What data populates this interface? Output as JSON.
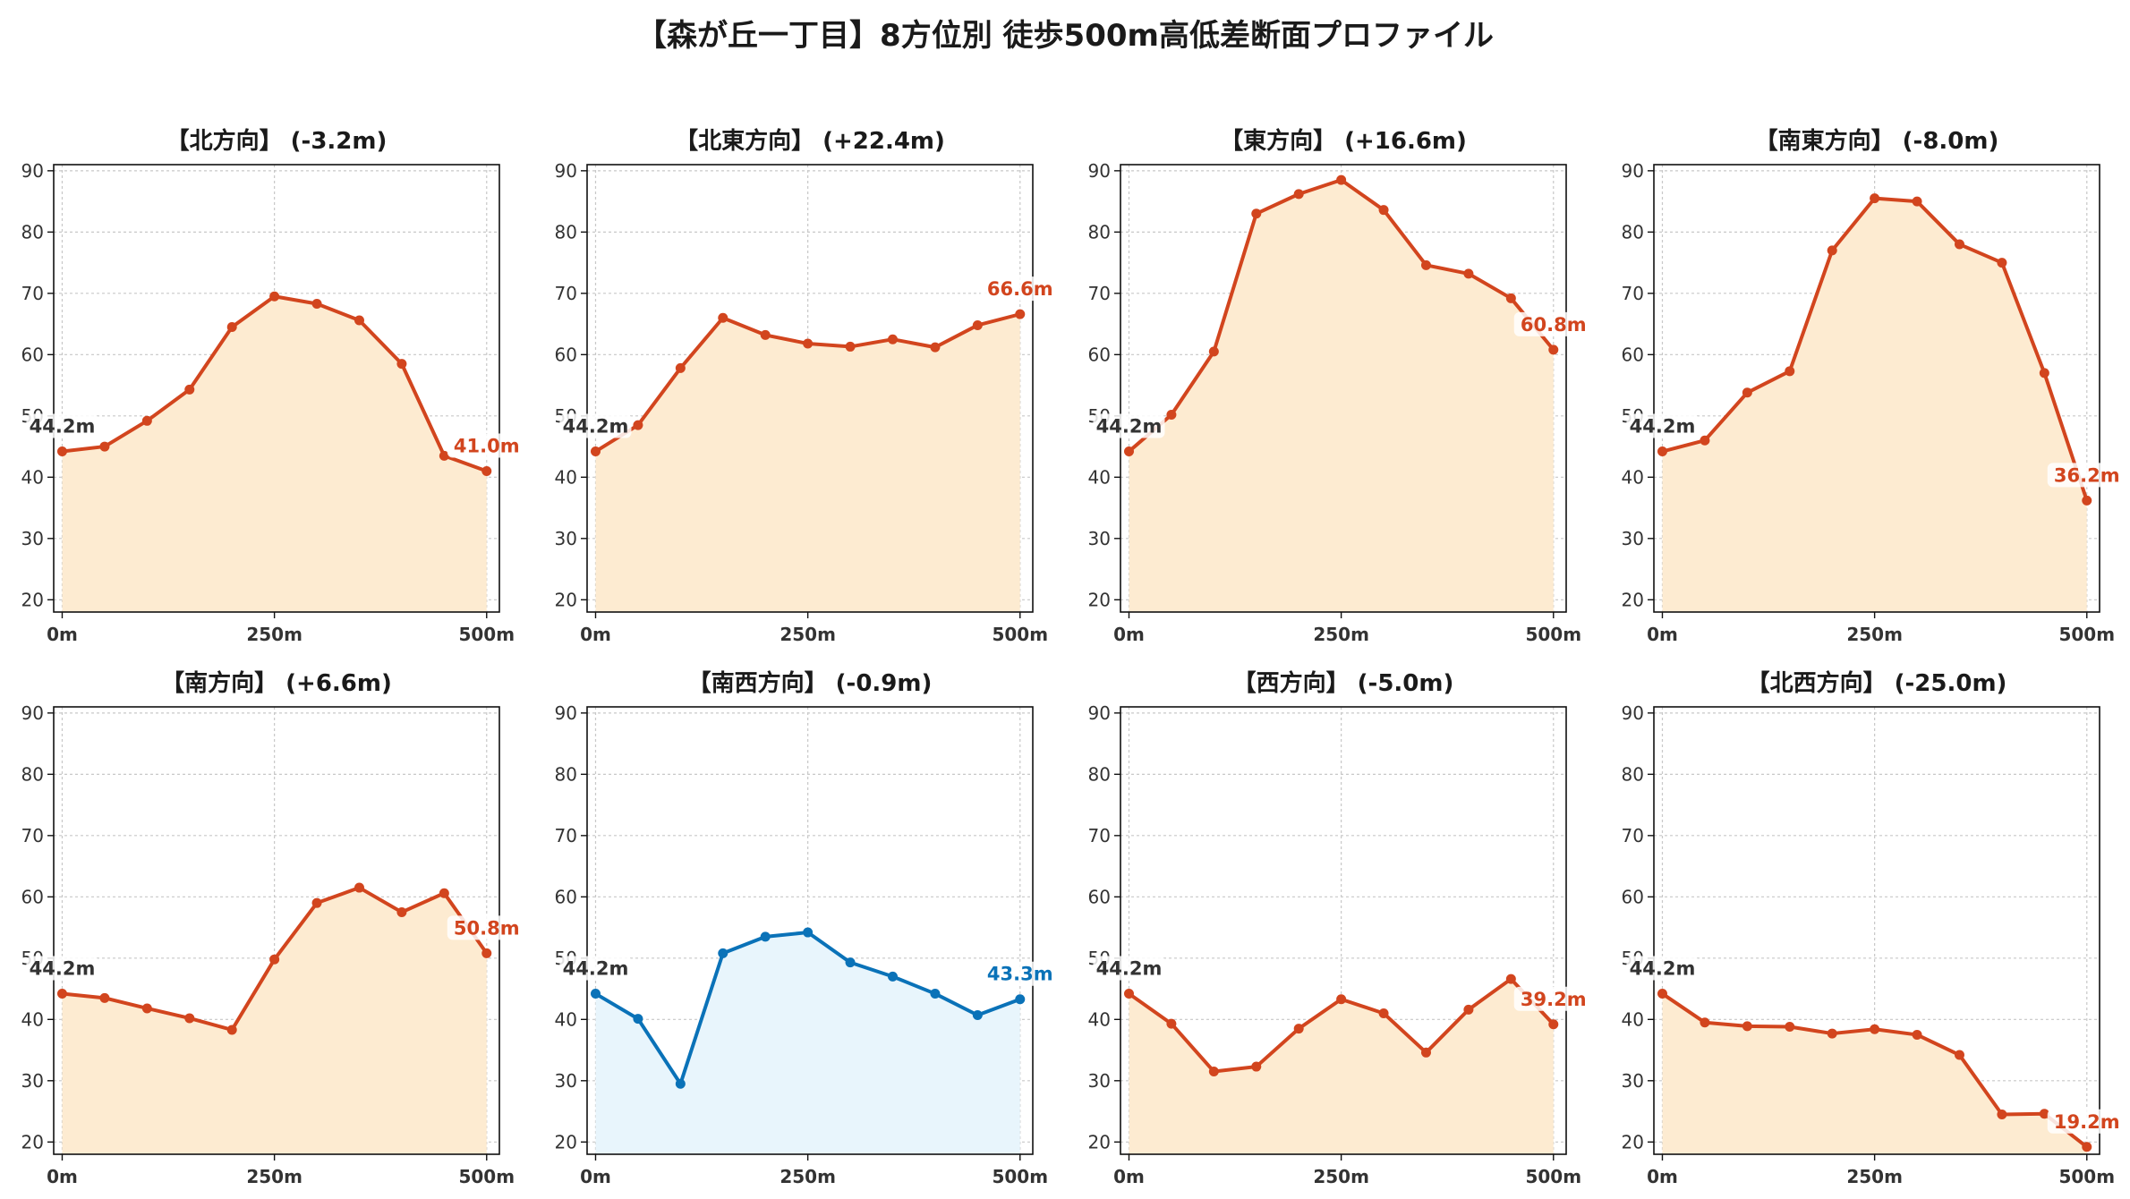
{
  "title": "【森が丘一丁目】8方位別 徒歩500m高低差断面プロファイル",
  "colors": {
    "rise_line": "#d2451e",
    "rise_fill": "#fdebd1",
    "fall_line": "#1f77b4",
    "fall_line_actual": "#0a72b8",
    "fall_fill": "#e8f5fc",
    "start_label": "#333333",
    "grid": "#c8c8c8"
  },
  "chart_data": [
    {
      "type": "area",
      "title": "【北方向】 (-3.2m)",
      "x": [
        0,
        50,
        100,
        150,
        200,
        250,
        300,
        350,
        400,
        450,
        500
      ],
      "y": [
        44.2,
        45.0,
        49.2,
        54.3,
        64.5,
        69.5,
        68.3,
        65.6,
        58.5,
        43.5,
        41.0
      ],
      "start_label": "44.2m",
      "end_label": "41.0m",
      "style": "rise",
      "ylim": [
        18,
        91
      ],
      "yticks": [
        20,
        30,
        40,
        50,
        60,
        70,
        80,
        90
      ],
      "xticks": [
        0,
        250,
        500
      ],
      "xticklabels": [
        "0m",
        "250m",
        "500m"
      ],
      "grid": true
    },
    {
      "type": "area",
      "title": "【北東方向】 (+22.4m)",
      "x": [
        0,
        50,
        100,
        150,
        200,
        250,
        300,
        350,
        400,
        450,
        500
      ],
      "y": [
        44.2,
        48.5,
        57.8,
        66.0,
        63.2,
        61.8,
        61.3,
        62.5,
        61.2,
        64.8,
        66.6
      ],
      "start_label": "44.2m",
      "end_label": "66.6m",
      "style": "rise",
      "ylim": [
        18,
        91
      ],
      "yticks": [
        20,
        30,
        40,
        50,
        60,
        70,
        80,
        90
      ],
      "xticks": [
        0,
        250,
        500
      ],
      "xticklabels": [
        "0m",
        "250m",
        "500m"
      ],
      "grid": true
    },
    {
      "type": "area",
      "title": "【東方向】 (+16.6m)",
      "x": [
        0,
        50,
        100,
        150,
        200,
        250,
        300,
        350,
        400,
        450,
        500
      ],
      "y": [
        44.2,
        50.2,
        60.5,
        83.0,
        86.2,
        88.5,
        83.6,
        74.6,
        73.2,
        69.2,
        60.8
      ],
      "start_label": "44.2m",
      "end_label": "60.8m",
      "style": "rise",
      "ylim": [
        18,
        91
      ],
      "yticks": [
        20,
        30,
        40,
        50,
        60,
        70,
        80,
        90
      ],
      "xticks": [
        0,
        250,
        500
      ],
      "xticklabels": [
        "0m",
        "250m",
        "500m"
      ],
      "grid": true
    },
    {
      "type": "area",
      "title": "【南東方向】 (-8.0m)",
      "x": [
        0,
        50,
        100,
        150,
        200,
        250,
        300,
        350,
        400,
        450,
        500
      ],
      "y": [
        44.2,
        46.0,
        53.8,
        57.3,
        77.0,
        85.5,
        85.0,
        78.0,
        75.0,
        57.0,
        36.2
      ],
      "start_label": "44.2m",
      "end_label": "36.2m",
      "style": "rise",
      "ylim": [
        18,
        91
      ],
      "yticks": [
        20,
        30,
        40,
        50,
        60,
        70,
        80,
        90
      ],
      "xticks": [
        0,
        250,
        500
      ],
      "xticklabels": [
        "0m",
        "250m",
        "500m"
      ],
      "grid": true
    },
    {
      "type": "area",
      "title": "【南方向】 (+6.6m)",
      "x": [
        0,
        50,
        100,
        150,
        200,
        250,
        300,
        350,
        400,
        450,
        500
      ],
      "y": [
        44.2,
        43.5,
        41.8,
        40.2,
        38.3,
        49.8,
        59.0,
        61.5,
        57.5,
        60.6,
        50.8
      ],
      "start_label": "44.2m",
      "end_label": "50.8m",
      "style": "rise",
      "ylim": [
        18,
        91
      ],
      "yticks": [
        20,
        30,
        40,
        50,
        60,
        70,
        80,
        90
      ],
      "xticks": [
        0,
        250,
        500
      ],
      "xticklabels": [
        "0m",
        "250m",
        "500m"
      ],
      "grid": true
    },
    {
      "type": "area",
      "title": "【南西方向】 (-0.9m)",
      "x": [
        0,
        50,
        100,
        150,
        200,
        250,
        300,
        350,
        400,
        450,
        500
      ],
      "y": [
        44.2,
        40.1,
        29.5,
        50.8,
        53.5,
        54.2,
        49.3,
        47.0,
        44.2,
        40.7,
        43.3
      ],
      "start_label": "44.2m",
      "end_label": "43.3m",
      "style": "fall",
      "ylim": [
        18,
        91
      ],
      "yticks": [
        20,
        30,
        40,
        50,
        60,
        70,
        80,
        90
      ],
      "xticks": [
        0,
        250,
        500
      ],
      "xticklabels": [
        "0m",
        "250m",
        "500m"
      ],
      "grid": true
    },
    {
      "type": "area",
      "title": "【西方向】 (-5.0m)",
      "x": [
        0,
        50,
        100,
        150,
        200,
        250,
        300,
        350,
        400,
        450,
        500
      ],
      "y": [
        44.2,
        39.3,
        31.5,
        32.3,
        38.5,
        43.3,
        41.0,
        34.6,
        41.6,
        46.6,
        39.2
      ],
      "start_label": "44.2m",
      "end_label": "39.2m",
      "style": "rise",
      "ylim": [
        18,
        91
      ],
      "yticks": [
        20,
        30,
        40,
        50,
        60,
        70,
        80,
        90
      ],
      "xticks": [
        0,
        250,
        500
      ],
      "xticklabels": [
        "0m",
        "250m",
        "500m"
      ],
      "grid": true
    },
    {
      "type": "area",
      "title": "【北西方向】 (-25.0m)",
      "x": [
        0,
        50,
        100,
        150,
        200,
        250,
        300,
        350,
        400,
        450,
        500
      ],
      "y": [
        44.2,
        39.5,
        38.9,
        38.8,
        37.7,
        38.4,
        37.5,
        34.2,
        24.5,
        24.6,
        19.2
      ],
      "start_label": "44.2m",
      "end_label": "19.2m",
      "style": "rise",
      "ylim": [
        18,
        91
      ],
      "yticks": [
        20,
        30,
        40,
        50,
        60,
        70,
        80,
        90
      ],
      "xticks": [
        0,
        250,
        500
      ],
      "xticklabels": [
        "0m",
        "250m",
        "500m"
      ],
      "grid": true
    }
  ]
}
